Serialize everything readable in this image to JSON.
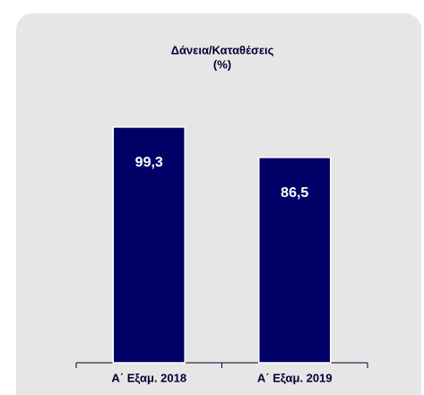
{
  "chart_data": {
    "type": "bar",
    "title": "Δάνεια/Καταθέσεις",
    "subtitle": "(%)",
    "categories": [
      "Α΄ Εξαμ. 2018",
      "Α΄ Εξαμ. 2019"
    ],
    "values": [
      99.3,
      86.5
    ],
    "value_labels": [
      "99,3",
      "86,5"
    ],
    "color": "#000066"
  }
}
